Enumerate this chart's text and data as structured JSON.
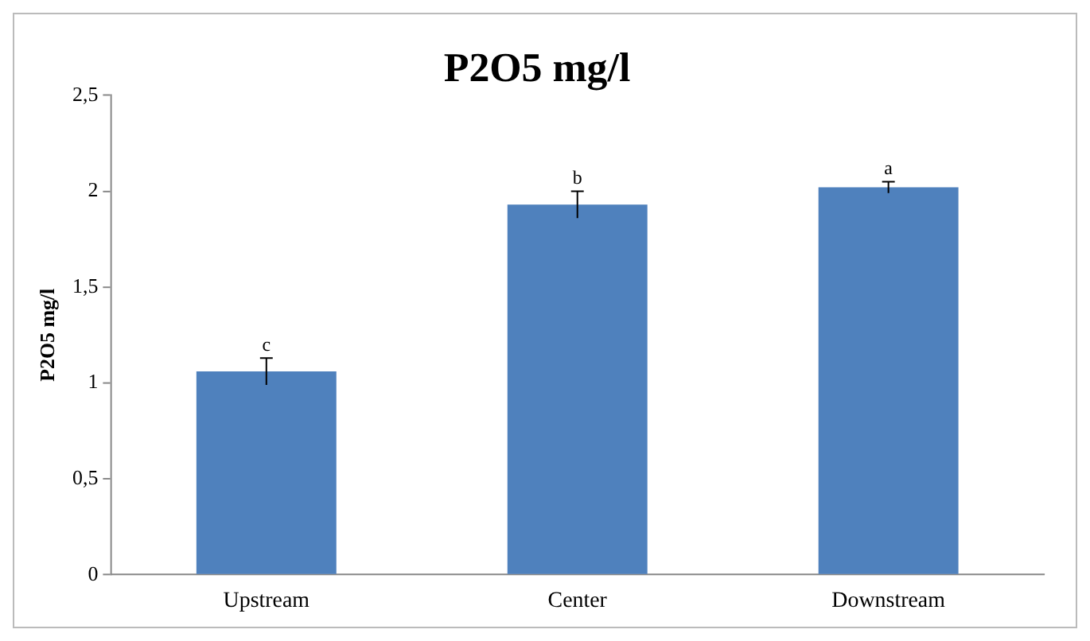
{
  "chart_data": {
    "type": "bar",
    "title": "P2O5 mg/l",
    "ylabel": "P2O5 mg/l",
    "categories": [
      "Upstream",
      "Center",
      "Downstream"
    ],
    "values": [
      1.06,
      1.93,
      2.02
    ],
    "errors": [
      0.07,
      0.07,
      0.03
    ],
    "color": "#4f81bd",
    "ylim": [
      0,
      2.5
    ],
    "yticks": [
      0,
      {
        "value": 0.5,
        "label": "0,5"
      },
      1,
      {
        "value": 1.5,
        "label": "1,5"
      },
      2,
      {
        "value": 2.5,
        "label": "2,5"
      }
    ],
    "grid": false,
    "annotations": [
      {
        "text": "c",
        "x": "Upstream",
        "y": 1.13
      },
      {
        "text": "b",
        "x": "Center",
        "y": 2.0
      },
      {
        "text": "a",
        "x": "Downstream",
        "y": 2.05
      }
    ]
  }
}
